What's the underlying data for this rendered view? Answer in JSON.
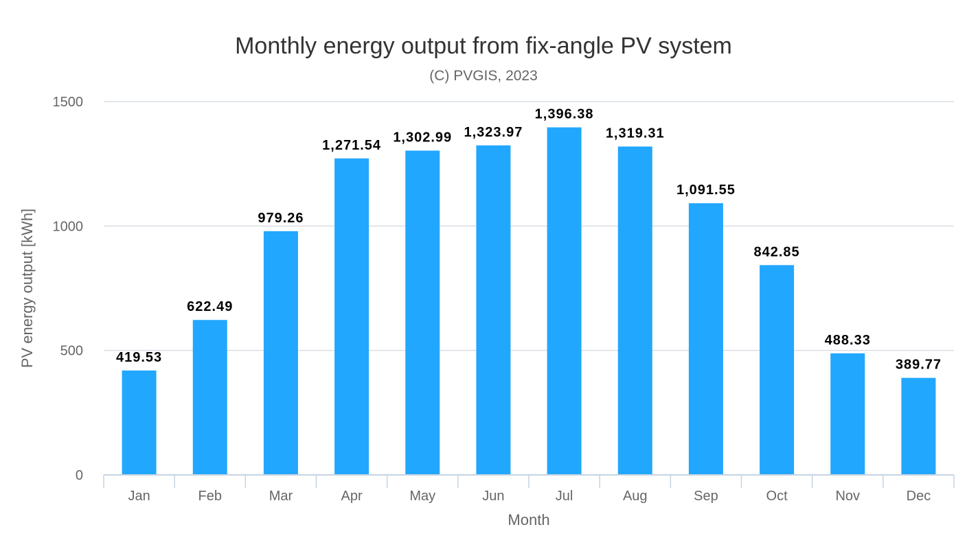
{
  "chart_data": {
    "type": "bar",
    "title": "Monthly energy output from fix-angle PV system",
    "subtitle": "(C) PVGIS, 2023",
    "xlabel": "Month",
    "ylabel": "PV energy output [kWh]",
    "categories": [
      "Jan",
      "Feb",
      "Mar",
      "Apr",
      "May",
      "Jun",
      "Jul",
      "Aug",
      "Sep",
      "Oct",
      "Nov",
      "Dec"
    ],
    "values": [
      419.53,
      622.49,
      979.26,
      1271.54,
      1302.99,
      1323.97,
      1396.38,
      1319.31,
      1091.55,
      842.85,
      488.33,
      389.77
    ],
    "data_labels": [
      "419.53",
      "622.49",
      "979.26",
      "1,271.54",
      "1,302.99",
      "1,323.97",
      "1,396.38",
      "1,319.31",
      "1,091.55",
      "842.85",
      "488.33",
      "389.77"
    ],
    "yticks": [
      "0",
      "500",
      "1000",
      "1500"
    ],
    "ylim": [
      0,
      1500
    ],
    "grid": true,
    "legend": "none",
    "bar_color": "#22a7fe"
  }
}
